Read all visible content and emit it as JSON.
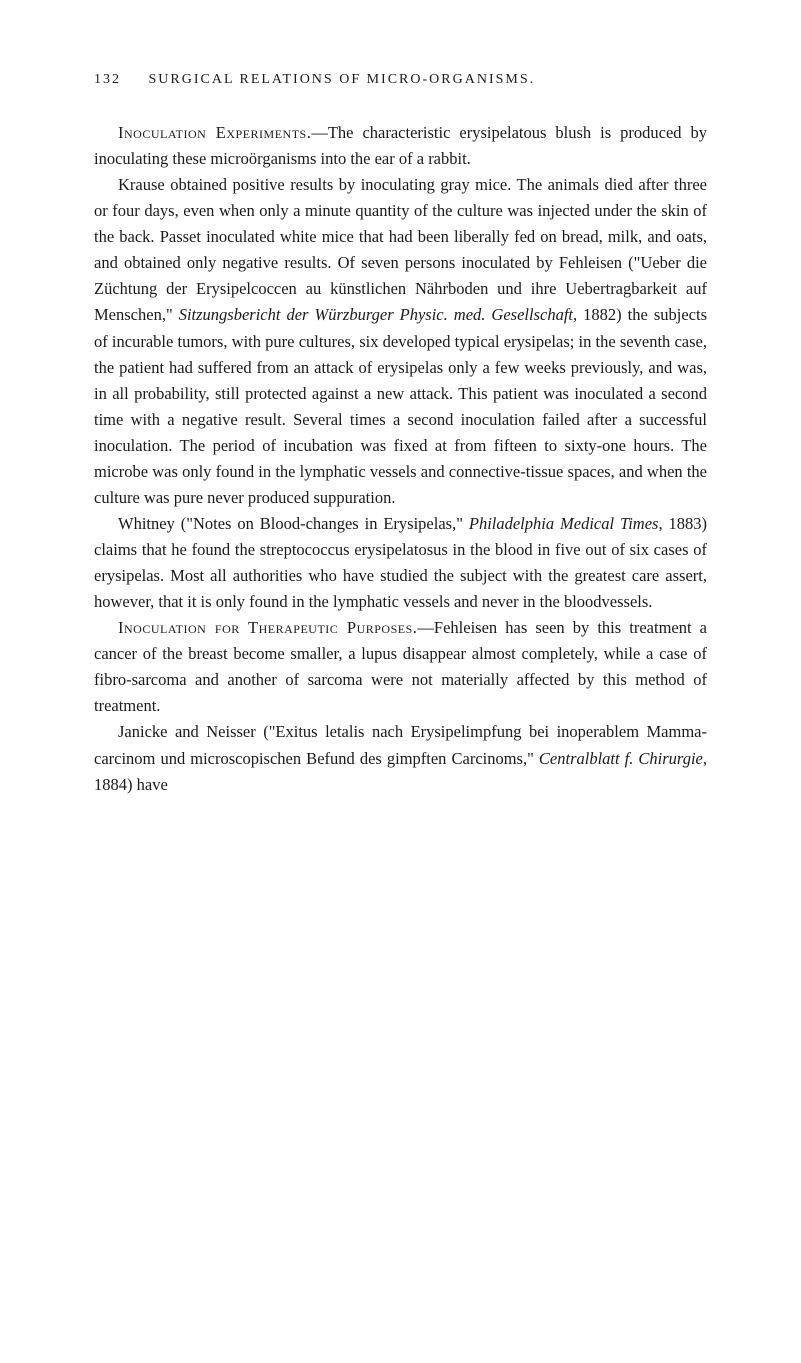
{
  "header": {
    "page_number": "132",
    "running_title": "SURGICAL RELATIONS OF MICRO-ORGANISMS."
  },
  "paragraphs": [
    {
      "segments": [
        {
          "text": "Inoculation Experiments.",
          "style": "smallcaps"
        },
        {
          "text": "—The characteristic erysipelatous blush is produced by inoculating these microörganisms into the ear of a rabbit.",
          "style": "normal"
        }
      ]
    },
    {
      "segments": [
        {
          "text": "Krause obtained positive results by inoculating gray mice. The animals died after three or four days, even when only a minute quantity of the culture was injected under the skin of the back. Passet inoculated white mice that had been liberally fed on bread, milk, and oats, and obtained only negative results. Of seven persons inoculated by Fehleisen (\"Ueber die Züchtung der Erysipelcoccen au künstlichen Nährboden und ihre Ueber­tragbarkeit auf Menschen,\" ",
          "style": "normal"
        },
        {
          "text": "Sitzungsbericht der Würzburger Physic. med. Gesellschaft",
          "style": "italic"
        },
        {
          "text": ", 1882) the subjects of incurable tumors, with pure cultures, six developed typical erysipelas; in the seventh case, the patient had suffered from an attack of erysip­elas only a few weeks previously, and was, in all probability, still protected against a new attack. This patient was inoculated a second time with a negative result. Several times a second inoculation failed after a successful inoculation. The period of incubation was fixed at from fifteen to sixty-one hours. The microbe was only found in the lymphatic vessels and connective-tissue spaces, and when the culture was pure never produced suppuration.",
          "style": "normal"
        }
      ]
    },
    {
      "segments": [
        {
          "text": "Whitney (\"Notes on Blood-changes in Erysipelas,\" ",
          "style": "normal"
        },
        {
          "text": "Philadel­phia Medical Times",
          "style": "italic"
        },
        {
          "text": ", 1883) claims that he found the streptococcus erysipelatosus in the blood in five out of six cases of erysipelas. Most all authorities who have studied the subject with the greatest care assert, however, that it is only found in the lym­phatic vessels and never in the bloodvessels.",
          "style": "normal"
        }
      ]
    },
    {
      "segments": [
        {
          "text": "Inoculation for Therapeutic Purposes.",
          "style": "smallcaps"
        },
        {
          "text": "—Fehleisen has seen by this treatment a cancer of the breast become smaller, a lupus disappear almost completely, while a case of fibro-sarcoma and another of sarcoma were not materially affected by this method of treatment.",
          "style": "normal"
        }
      ]
    },
    {
      "segments": [
        {
          "text": "Janicke and Neisser (\"Exitus letalis nach Erysipelimpfung bei inoperablem Mamma-carcinom und microscopischen Befund des gimpften Carcinoms,\" ",
          "style": "normal"
        },
        {
          "text": "Centralblatt f. Chirurgie",
          "style": "italic"
        },
        {
          "text": ", 1884) have",
          "style": "normal"
        }
      ]
    }
  ]
}
